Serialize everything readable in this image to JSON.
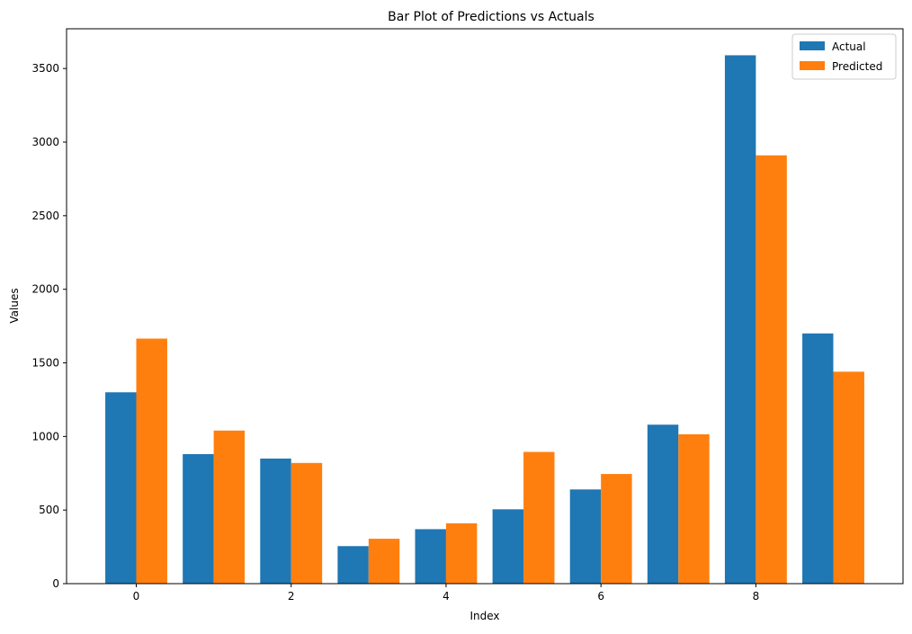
{
  "chart_data": {
    "type": "bar",
    "title": "Bar Plot of Predictions vs Actuals",
    "xlabel": "Index",
    "ylabel": "Values",
    "categories": [
      0,
      1,
      2,
      3,
      4,
      5,
      6,
      7,
      8,
      9
    ],
    "x_ticks": [
      0,
      2,
      4,
      6,
      8
    ],
    "y_ticks": [
      0,
      500,
      1000,
      1500,
      2000,
      2500,
      3000,
      3500
    ],
    "xlim": [
      -0.9,
      9.9
    ],
    "ylim": [
      0,
      3770
    ],
    "legend_position": "top-right",
    "grid": false,
    "series": [
      {
        "name": "Actual",
        "color": "#1f77b4",
        "values": [
          1300,
          880,
          850,
          255,
          370,
          505,
          640,
          1080,
          3590,
          1700
        ]
      },
      {
        "name": "Predicted",
        "color": "#ff7f0e",
        "values": [
          1665,
          1040,
          820,
          305,
          410,
          895,
          745,
          1015,
          2910,
          1440
        ]
      }
    ]
  }
}
